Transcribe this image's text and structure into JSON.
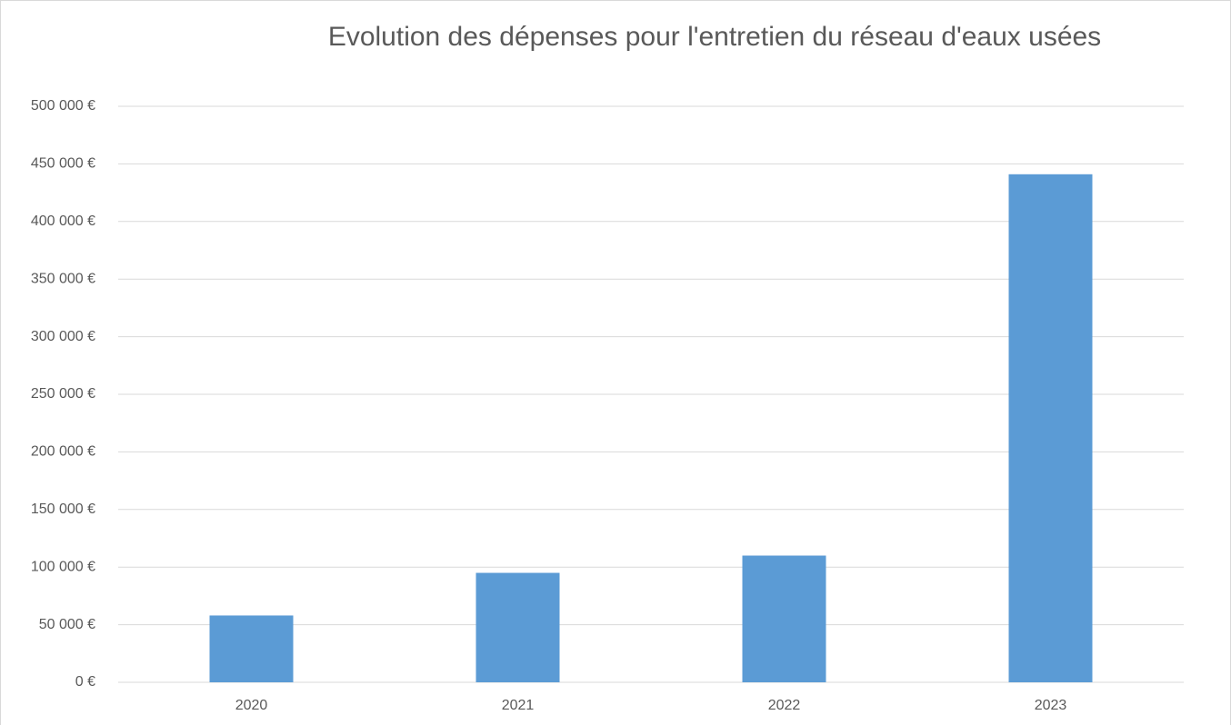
{
  "chart_data": {
    "type": "bar",
    "title": "Evolution des dépenses pour l'entretien du réseau d'eaux usées",
    "categories": [
      "2020",
      "2021",
      "2022",
      "2023"
    ],
    "values": [
      58000,
      95000,
      110000,
      441000
    ],
    "color": "#5b9bd5",
    "ylim": [
      0,
      500000
    ],
    "yticks": [
      {
        "value": 0,
        "label": "0 €"
      },
      {
        "value": 50000,
        "label": "50 000 €"
      },
      {
        "value": 100000,
        "label": "100 000 €"
      },
      {
        "value": 150000,
        "label": "150 000 €"
      },
      {
        "value": 200000,
        "label": "200 000 €"
      },
      {
        "value": 250000,
        "label": "250 000 €"
      },
      {
        "value": 300000,
        "label": "300 000 €"
      },
      {
        "value": 350000,
        "label": "350 000 €"
      },
      {
        "value": 400000,
        "label": "400 000 €"
      },
      {
        "value": 450000,
        "label": "450 000 €"
      },
      {
        "value": 500000,
        "label": "500 000 €"
      }
    ],
    "grid": true
  }
}
